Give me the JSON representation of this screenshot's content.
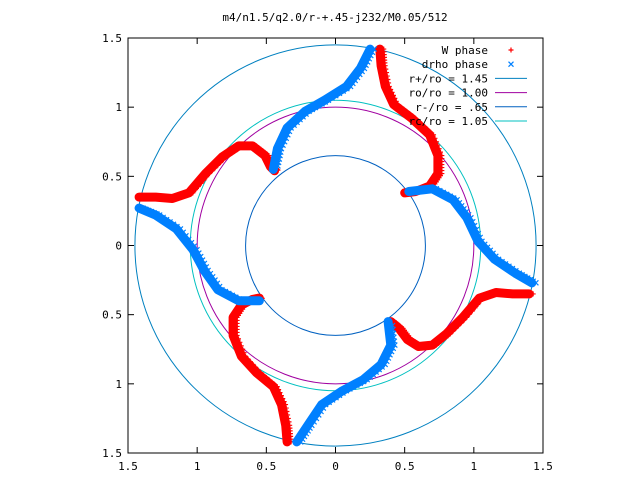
{
  "chart_data": {
    "type": "scatter",
    "title": "m4/n1.5/q2.0/r-+.45-j232/M0.05/512",
    "xlim": [
      -1.5,
      1.5
    ],
    "ylim": [
      -1.5,
      1.5
    ],
    "x_ticks": [
      "1.5",
      "1",
      "0.5",
      "0",
      "0.5",
      "1",
      "1.5"
    ],
    "x_tick_values": [
      -1.5,
      -1,
      -0.5,
      0,
      0.5,
      1,
      1.5
    ],
    "y_ticks": [
      "1.5",
      "1",
      "0.5",
      "0",
      "0.5",
      "1",
      "1.5"
    ],
    "y_tick_values": [
      1.5,
      1,
      0.5,
      0,
      -0.5,
      -1,
      -1.5
    ],
    "legend_position": "top-right",
    "legend": [
      {
        "label": "W phase",
        "marker": "+",
        "color": "#ff0000"
      },
      {
        "label": "drho phase",
        "marker": "x",
        "color": "#0080ff"
      },
      {
        "label": "r+/ro = 1.45",
        "color": "#0080c0"
      },
      {
        "label": "ro/ro = 1.00",
        "color": "#a000a0"
      },
      {
        "label": "r-/ro = .65",
        "color": "#0060c0"
      },
      {
        "label": "rc/ro = 1.05",
        "color": "#00c0c0"
      }
    ],
    "circles": [
      {
        "name": "r+/ro = 1.45",
        "r": 1.45,
        "color": "#0080c0"
      },
      {
        "name": "ro/ro = 1.00",
        "r": 1.0,
        "color": "#a000a0"
      },
      {
        "name": "r-/ro = .65",
        "r": 0.65,
        "color": "#0060c0"
      },
      {
        "name": "rc/ro = 1.05",
        "r": 1.05,
        "color": "#00c0c0"
      }
    ],
    "series": [
      {
        "name": "W phase",
        "color": "#ff0000",
        "branches": [
          [
            [
              0.32,
              1.42
            ],
            [
              0.33,
              1.3
            ],
            [
              0.36,
              1.15
            ],
            [
              0.42,
              1.02
            ],
            [
              0.55,
              0.92
            ],
            [
              0.68,
              0.8
            ],
            [
              0.74,
              0.65
            ],
            [
              0.74,
              0.52
            ],
            [
              0.68,
              0.43
            ],
            [
              0.58,
              0.39
            ],
            [
              0.5,
              0.38
            ]
          ],
          [
            [
              -1.42,
              0.35
            ],
            [
              -1.3,
              0.35
            ],
            [
              -1.18,
              0.34
            ],
            [
              -1.06,
              0.38
            ],
            [
              -0.94,
              0.52
            ],
            [
              -0.82,
              0.64
            ],
            [
              -0.7,
              0.72
            ],
            [
              -0.6,
              0.72
            ],
            [
              -0.51,
              0.65
            ],
            [
              -0.47,
              0.57
            ],
            [
              -0.44,
              0.54
            ]
          ],
          [
            [
              -0.35,
              -1.42
            ],
            [
              -0.36,
              -1.3
            ],
            [
              -0.39,
              -1.15
            ],
            [
              -0.45,
              -1.02
            ],
            [
              -0.57,
              -0.92
            ],
            [
              -0.68,
              -0.8
            ],
            [
              -0.74,
              -0.65
            ],
            [
              -0.74,
              -0.52
            ],
            [
              -0.68,
              -0.43
            ],
            [
              -0.6,
              -0.39
            ],
            [
              -0.55,
              -0.38
            ]
          ],
          [
            [
              1.4,
              -0.35
            ],
            [
              1.28,
              -0.35
            ],
            [
              1.16,
              -0.34
            ],
            [
              1.04,
              -0.38
            ],
            [
              0.92,
              -0.52
            ],
            [
              0.8,
              -0.64
            ],
            [
              0.7,
              -0.72
            ],
            [
              0.6,
              -0.73
            ],
            [
              0.52,
              -0.68
            ],
            [
              0.46,
              -0.6
            ],
            [
              0.4,
              -0.55
            ]
          ]
        ]
      },
      {
        "name": "drho phase",
        "color": "#0080ff",
        "branches": [
          [
            [
              0.25,
              1.42
            ],
            [
              0.18,
              1.28
            ],
            [
              0.08,
              1.15
            ],
            [
              -0.08,
              1.05
            ],
            [
              -0.22,
              0.97
            ],
            [
              -0.35,
              0.85
            ],
            [
              -0.42,
              0.7
            ],
            [
              -0.45,
              0.55
            ]
          ],
          [
            [
              -1.42,
              0.27
            ],
            [
              -1.3,
              0.22
            ],
            [
              -1.15,
              0.12
            ],
            [
              -1.03,
              -0.03
            ],
            [
              -0.95,
              -0.18
            ],
            [
              -0.85,
              -0.32
            ],
            [
              -0.7,
              -0.4
            ],
            [
              -0.55,
              -0.4
            ]
          ],
          [
            [
              -0.28,
              -1.42
            ],
            [
              -0.2,
              -1.3
            ],
            [
              -0.1,
              -1.15
            ],
            [
              0.05,
              -1.05
            ],
            [
              0.2,
              -0.97
            ],
            [
              0.33,
              -0.86
            ],
            [
              0.4,
              -0.72
            ],
            [
              0.38,
              -0.55
            ]
          ],
          [
            [
              1.42,
              -0.27
            ],
            [
              1.3,
              -0.2
            ],
            [
              1.15,
              -0.1
            ],
            [
              1.03,
              0.03
            ],
            [
              0.95,
              0.2
            ],
            [
              0.85,
              0.33
            ],
            [
              0.7,
              0.41
            ],
            [
              0.53,
              0.39
            ]
          ]
        ]
      }
    ]
  }
}
